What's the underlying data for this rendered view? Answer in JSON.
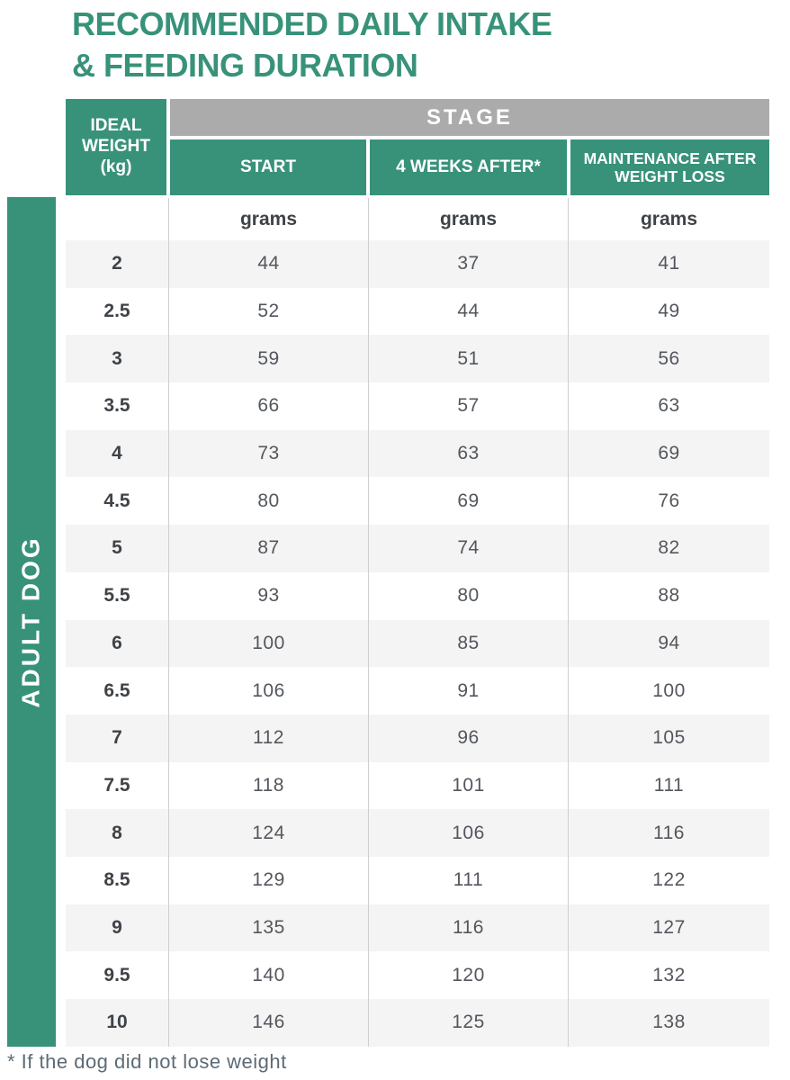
{
  "title": {
    "line1": "RECOMMENDED DAILY INTAKE",
    "line2": "& FEEDING DURATION"
  },
  "sidebar": {
    "label": "ADULT DOG"
  },
  "table": {
    "corner_header": "IDEAL WEIGHT (kg)",
    "stage_header": "STAGE",
    "columns": [
      "START",
      "4 WEEKS AFTER*",
      "MAINTENANCE AFTER WEIGHT LOSS"
    ],
    "units": [
      "grams",
      "grams",
      "grams"
    ],
    "rows": [
      [
        "2",
        "44",
        "37",
        "41"
      ],
      [
        "2.5",
        "52",
        "44",
        "49"
      ],
      [
        "3",
        "59",
        "51",
        "56"
      ],
      [
        "3.5",
        "66",
        "57",
        "63"
      ],
      [
        "4",
        "73",
        "63",
        "69"
      ],
      [
        "4.5",
        "80",
        "69",
        "76"
      ],
      [
        "5",
        "87",
        "74",
        "82"
      ],
      [
        "5.5",
        "93",
        "80",
        "88"
      ],
      [
        "6",
        "100",
        "85",
        "94"
      ],
      [
        "6.5",
        "106",
        "91",
        "100"
      ],
      [
        "7",
        "112",
        "96",
        "105"
      ],
      [
        "7.5",
        "118",
        "101",
        "111"
      ],
      [
        "8",
        "124",
        "106",
        "116"
      ],
      [
        "8.5",
        "129",
        "111",
        "122"
      ],
      [
        "9",
        "135",
        "116",
        "127"
      ],
      [
        "9.5",
        "140",
        "120",
        "132"
      ],
      [
        "10",
        "146",
        "125",
        "138"
      ]
    ]
  },
  "footnote": "* If the dog did not lose weight",
  "colors": {
    "green": "#38927A",
    "header_gray": "#ABABAB",
    "stripe": "#F4F4F4",
    "line": "#CFCFCF"
  }
}
